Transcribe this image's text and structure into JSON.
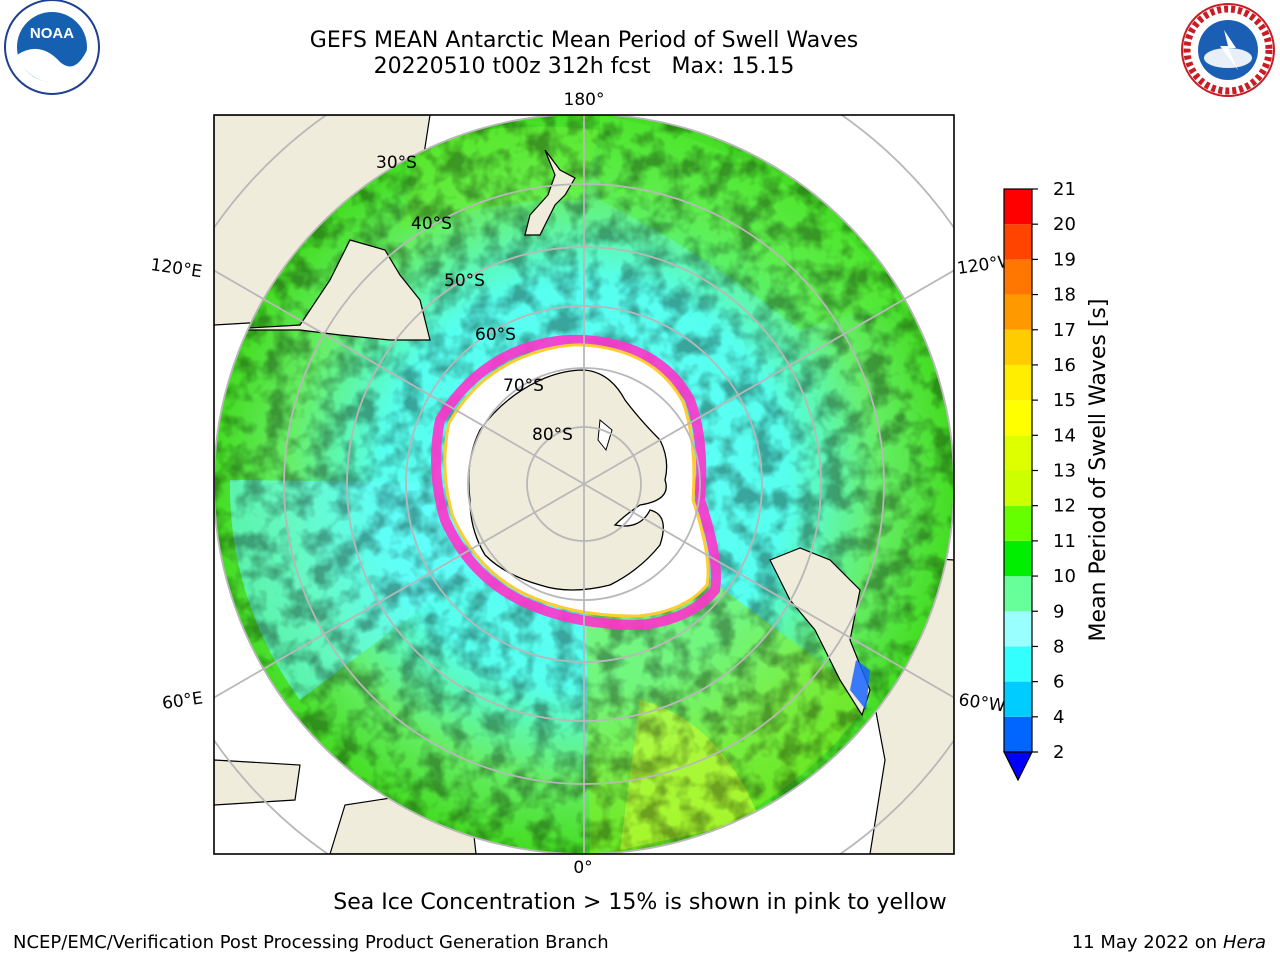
{
  "title_line1": "GEFS MEAN Antarctic Mean Period of Swell Waves",
  "title_line2": "20220510 t00z 312h fcst   Max: 15.15",
  "logos": {
    "left": {
      "icon": "noaa-logo",
      "text": "NOAA"
    },
    "right": {
      "icon": "nws-logo",
      "ring_text": "NATIONAL WEATHER SERVICE"
    }
  },
  "map": {
    "projection": "south-polar-stereographic",
    "longitude_labels": {
      "top": "180°",
      "bottom": "0°",
      "upper_left": "120°E",
      "upper_right": "120°W",
      "lower_left": "60°E",
      "lower_right": "60°W"
    },
    "latitude_labels": [
      "30°S",
      "40°S",
      "50°S",
      "60°S",
      "70°S",
      "80°S"
    ],
    "colors": {
      "land": "#efecdc",
      "sea_ice_outer": "#ff33cc",
      "sea_ice_inner": "#ffcc33",
      "grid": "#b8b8b8"
    }
  },
  "colorbar": {
    "label": "Mean Period of Swell Waves [s]",
    "ticks": [
      "2",
      "4",
      "6",
      "8",
      "9",
      "10",
      "11",
      "12",
      "13",
      "14",
      "15",
      "16",
      "17",
      "18",
      "19",
      "20",
      "21"
    ],
    "colors": [
      "#0066ff",
      "#00ccff",
      "#33ffff",
      "#99ffff",
      "#66ff99",
      "#00ee00",
      "#66ff00",
      "#ccff00",
      "#ddff00",
      "#ffff00",
      "#ffee00",
      "#ffcc00",
      "#ff9900",
      "#ff7700",
      "#ff4400",
      "#ff0000"
    ],
    "under_color": "#0000ff"
  },
  "caption": "Sea Ice Concentration > 15% is shown in pink to yellow",
  "credit_left": "NCEP/EMC/Verification Post Processing Product Generation Branch",
  "credit_right_date": "11 May 2022 on",
  "credit_right_host": "Hera"
}
